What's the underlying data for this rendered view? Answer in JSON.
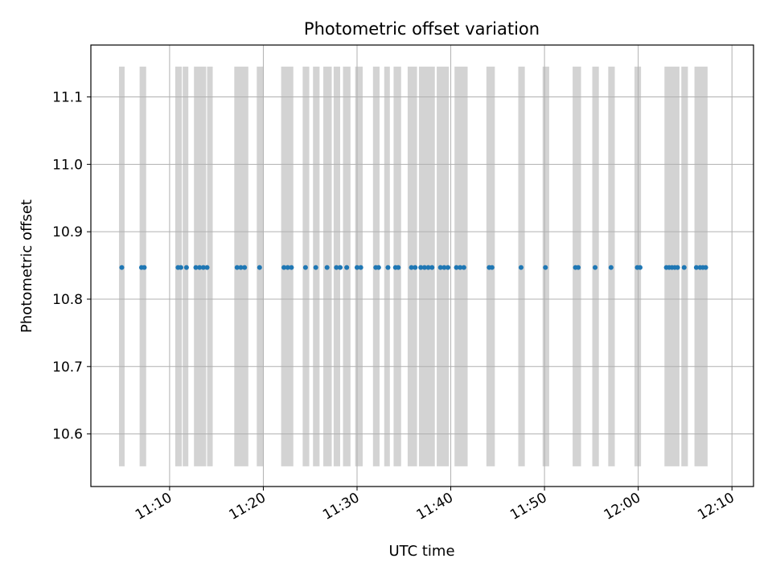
{
  "chart_data": {
    "type": "scatter",
    "title": "Photometric offset variation",
    "xlabel": "UTC time",
    "ylabel": "Photometric offset",
    "x_tick_labels": [
      "11:10",
      "11:20",
      "11:30",
      "11:40",
      "11:50",
      "12:00",
      "12:10"
    ],
    "x_tick_values_min": [
      70,
      80,
      90,
      100,
      110,
      120,
      130
    ],
    "xlim_min": [
      61.6,
      132.3
    ],
    "y_ticks": [
      10.6,
      10.7,
      10.8,
      10.9,
      11.0,
      11.1
    ],
    "ylim": [
      10.522,
      11.177
    ],
    "grid": true,
    "series_color": "#1f77b4",
    "band_color": "#d3d3d3",
    "band_ylim": [
      10.552,
      11.145
    ],
    "bands_min": [
      [
        64.6,
        65.2
      ],
      [
        66.8,
        67.5
      ],
      [
        70.6,
        71.3
      ],
      [
        71.4,
        72.0
      ],
      [
        72.6,
        73.9
      ],
      [
        74.0,
        74.6
      ],
      [
        76.9,
        78.4
      ],
      [
        79.3,
        80.0
      ],
      [
        81.9,
        83.2
      ],
      [
        84.2,
        84.9
      ],
      [
        85.3,
        86.0
      ],
      [
        86.4,
        87.3
      ],
      [
        87.5,
        88.2
      ],
      [
        88.5,
        89.3
      ],
      [
        89.8,
        90.6
      ],
      [
        91.7,
        92.4
      ],
      [
        92.9,
        93.5
      ],
      [
        93.9,
        94.7
      ],
      [
        95.4,
        96.4
      ],
      [
        96.6,
        98.3
      ],
      [
        98.5,
        99.8
      ],
      [
        100.4,
        101.8
      ],
      [
        103.8,
        104.7
      ],
      [
        107.2,
        107.9
      ],
      [
        109.8,
        110.5
      ],
      [
        113.0,
        113.9
      ],
      [
        115.1,
        115.8
      ],
      [
        116.8,
        117.5
      ],
      [
        119.6,
        120.3
      ],
      [
        122.8,
        124.4
      ],
      [
        124.6,
        125.3
      ],
      [
        126.0,
        127.4
      ]
    ],
    "x_min": [
      64.9,
      67.0,
      67.3,
      70.9,
      71.2,
      71.8,
      72.8,
      73.2,
      73.6,
      74.0,
      77.2,
      77.6,
      78.0,
      79.6,
      82.2,
      82.6,
      83.0,
      84.5,
      85.6,
      86.8,
      87.8,
      88.2,
      88.9,
      90.0,
      90.4,
      92.0,
      92.3,
      93.3,
      94.1,
      94.4,
      95.8,
      96.2,
      96.8,
      97.2,
      97.6,
      98.0,
      98.9,
      99.3,
      99.7,
      100.6,
      101.0,
      101.4,
      104.1,
      104.4,
      107.5,
      110.1,
      113.3,
      113.6,
      115.4,
      117.1,
      119.9,
      120.2,
      123.0,
      123.3,
      123.6,
      123.9,
      124.2,
      124.9,
      126.2,
      126.6,
      126.9,
      127.2
    ],
    "y": 10.847
  }
}
